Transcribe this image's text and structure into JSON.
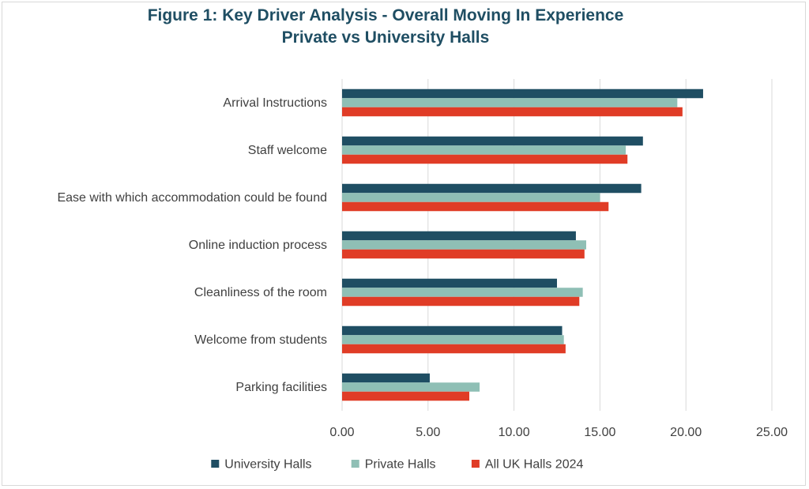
{
  "chart_data": {
    "type": "bar",
    "orientation": "horizontal",
    "title": "Figure 1: Key Driver Analysis - Overall Moving In Experience",
    "subtitle": "Private vs University Halls",
    "categories": [
      "Arrival Instructions",
      "Staff welcome",
      "Ease with which accommodation could be found",
      "Online induction process",
      "Cleanliness of the room",
      "Welcome from students",
      "Parking facilities"
    ],
    "series": [
      {
        "name": "University Halls",
        "color": "#1f4e63",
        "values": [
          21.0,
          17.5,
          17.4,
          13.6,
          12.5,
          12.8,
          5.1
        ]
      },
      {
        "name": "Private Halls",
        "color": "#8fbfb5",
        "values": [
          19.5,
          16.5,
          15.0,
          14.2,
          14.0,
          12.9,
          8.0
        ]
      },
      {
        "name": "All UK Halls 2024",
        "color": "#e03c26",
        "values": [
          19.8,
          16.6,
          15.5,
          14.1,
          13.8,
          13.0,
          7.4
        ]
      }
    ],
    "xlim": [
      0,
      25
    ],
    "xticks": [
      "0.00",
      "5.00",
      "10.00",
      "15.00",
      "20.00",
      "25.00"
    ],
    "grid": true,
    "legend_position": "bottom"
  }
}
